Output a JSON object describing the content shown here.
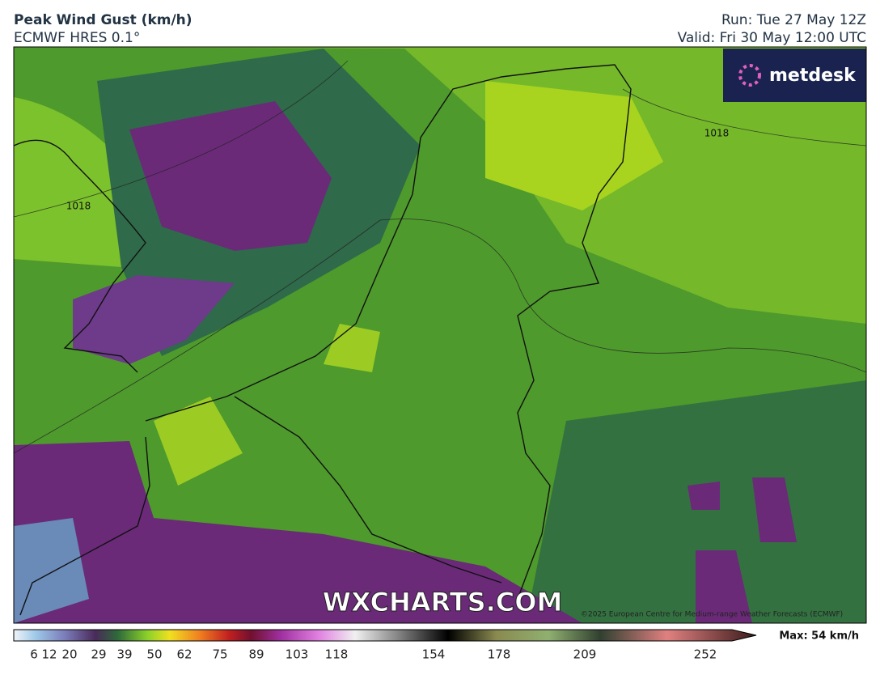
{
  "header": {
    "title": "Peak Wind Gust (km/h)",
    "model": "ECMWF HRES 0.1°",
    "run": "Run: Tue 27 May 12Z",
    "valid": "Valid: Fri 30 May 12:00 UTC"
  },
  "map": {
    "logo": "metdesk",
    "isobar_labels": [
      "1018",
      "1018"
    ],
    "watermark": "WXCHARTS.COM",
    "copyright": "©2025 European Centre for Medium-range Weather Forecasts (ECMWF)"
  },
  "colorbar": {
    "ticks": [
      6,
      12,
      20,
      29,
      39,
      50,
      62,
      75,
      89,
      103,
      118,
      154,
      178,
      209,
      252
    ],
    "max_label": "Max: 54 km/h"
  }
}
